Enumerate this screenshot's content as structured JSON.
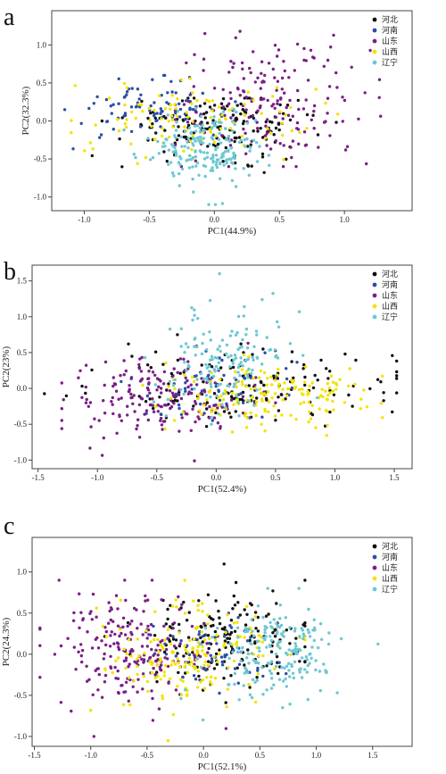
{
  "panels": [
    "a",
    "b",
    "c"
  ],
  "legend_order": [
    "河北",
    "河南",
    "山东",
    "山西",
    "辽宁"
  ],
  "colors": {
    "河北": "#111111",
    "河南": "#2a4fa8",
    "山东": "#7b1f86",
    "山西": "#f3e300",
    "辽宁": "#6cc8d2"
  },
  "chart_data": [
    {
      "type": "scatter",
      "panel": "a",
      "xlabel": "PC1(44.9%)",
      "ylabel": "PC2(32.3%)",
      "xlim": [
        -1.25,
        1.52
      ],
      "ylim": [
        -1.18,
        1.45
      ],
      "xticks": [
        -1.0,
        -0.5,
        0.0,
        0.5,
        1.0
      ],
      "yticks": [
        -1.0,
        -0.5,
        0.0,
        0.5,
        1.0
      ],
      "legend": "top-right",
      "grid": false,
      "clusters": [
        {
          "name": "河北",
          "n": 160,
          "cx": 0.05,
          "cy": -0.05,
          "sx": 0.38,
          "sy": 0.2,
          "xr": [
            -1.0,
            1.4
          ],
          "yr": [
            -0.9,
            0.3
          ]
        },
        {
          "name": "河南",
          "n": 90,
          "cx": -0.5,
          "cy": 0.15,
          "sx": 0.3,
          "sy": 0.18,
          "xr": [
            -1.15,
            0.5
          ],
          "yr": [
            -0.4,
            0.6
          ]
        },
        {
          "name": "山东",
          "n": 180,
          "cx": 0.45,
          "cy": 0.25,
          "sx": 0.38,
          "sy": 0.42,
          "xr": [
            -0.3,
            1.3
          ],
          "yr": [
            -0.6,
            1.35
          ]
        },
        {
          "name": "山西",
          "n": 110,
          "cx": -0.2,
          "cy": 0.02,
          "sx": 0.45,
          "sy": 0.24,
          "xr": [
            -1.1,
            1.3
          ],
          "yr": [
            -0.8,
            0.7
          ]
        },
        {
          "name": "辽宁",
          "n": 190,
          "cx": -0.05,
          "cy": -0.35,
          "sx": 0.22,
          "sy": 0.25,
          "xr": [
            -0.8,
            0.7
          ],
          "yr": [
            -1.1,
            0.3
          ]
        }
      ]
    },
    {
      "type": "scatter",
      "panel": "b",
      "xlabel": "PC1(52.4%)",
      "ylabel": "PC2(23%)",
      "xlim": [
        -1.55,
        1.65
      ],
      "ylim": [
        -1.12,
        1.72
      ],
      "xticks": [
        -1.5,
        -1.0,
        -0.5,
        0.0,
        0.5,
        1.0,
        1.5
      ],
      "yticks": [
        -1.0,
        -0.5,
        0.0,
        0.5,
        1.0,
        1.5
      ],
      "legend": "top-right",
      "grid": false,
      "clusters": [
        {
          "name": "河北",
          "n": 150,
          "cx": 0.3,
          "cy": 0.05,
          "sx": 0.6,
          "sy": 0.25,
          "xr": [
            -1.45,
            1.52
          ],
          "yr": [
            -0.7,
            0.75
          ]
        },
        {
          "name": "河南",
          "n": 60,
          "cx": 0.0,
          "cy": 0.0,
          "sx": 0.35,
          "sy": 0.25,
          "xr": [
            -0.8,
            0.9
          ],
          "yr": [
            -1.0,
            0.6
          ]
        },
        {
          "name": "山东",
          "n": 190,
          "cx": -0.5,
          "cy": -0.1,
          "sx": 0.38,
          "sy": 0.3,
          "xr": [
            -1.3,
            0.5
          ],
          "yr": [
            -1.05,
            0.65
          ]
        },
        {
          "name": "山西",
          "n": 170,
          "cx": 0.5,
          "cy": -0.1,
          "sx": 0.45,
          "sy": 0.22,
          "xr": [
            -0.9,
            1.4
          ],
          "yr": [
            -0.8,
            0.6
          ]
        },
        {
          "name": "辽宁",
          "n": 150,
          "cx": 0.05,
          "cy": 0.4,
          "sx": 0.25,
          "sy": 0.38,
          "xr": [
            -0.6,
            1.0
          ],
          "yr": [
            -0.5,
            1.6
          ]
        }
      ]
    },
    {
      "type": "scatter",
      "panel": "c",
      "xlabel": "PC1(52.1%)",
      "ylabel": "PC2(24.3%)",
      "xlim": [
        -1.52,
        1.85
      ],
      "ylim": [
        -1.12,
        1.42
      ],
      "xticks": [
        -1.5,
        -1.0,
        -0.5,
        0.0,
        0.5,
        1.0,
        1.5
      ],
      "yticks": [
        -1.0,
        -0.5,
        0.0,
        0.5,
        1.0
      ],
      "legend": "top-right",
      "grid": false,
      "clusters": [
        {
          "name": "河北",
          "n": 170,
          "cx": 0.2,
          "cy": 0.2,
          "sx": 0.4,
          "sy": 0.3,
          "xr": [
            -0.9,
            0.9
          ],
          "yr": [
            -0.6,
            1.25
          ]
        },
        {
          "name": "河南",
          "n": 70,
          "cx": 0.1,
          "cy": 0.0,
          "sx": 0.3,
          "sy": 0.2,
          "xr": [
            -0.5,
            0.8
          ],
          "yr": [
            -0.7,
            0.5
          ]
        },
        {
          "name": "山东",
          "n": 210,
          "cx": -0.65,
          "cy": 0.0,
          "sx": 0.32,
          "sy": 0.38,
          "xr": [
            -1.45,
            0.2
          ],
          "yr": [
            -1.0,
            0.9
          ]
        },
        {
          "name": "山西",
          "n": 180,
          "cx": -0.1,
          "cy": 0.0,
          "sx": 0.38,
          "sy": 0.32,
          "xr": [
            -1.0,
            0.9
          ],
          "yr": [
            -1.05,
            1.1
          ]
        },
        {
          "name": "辽宁",
          "n": 190,
          "cx": 0.65,
          "cy": 0.0,
          "sx": 0.3,
          "sy": 0.28,
          "xr": [
            -0.2,
            1.65
          ],
          "yr": [
            -0.8,
            0.8
          ]
        }
      ]
    }
  ]
}
